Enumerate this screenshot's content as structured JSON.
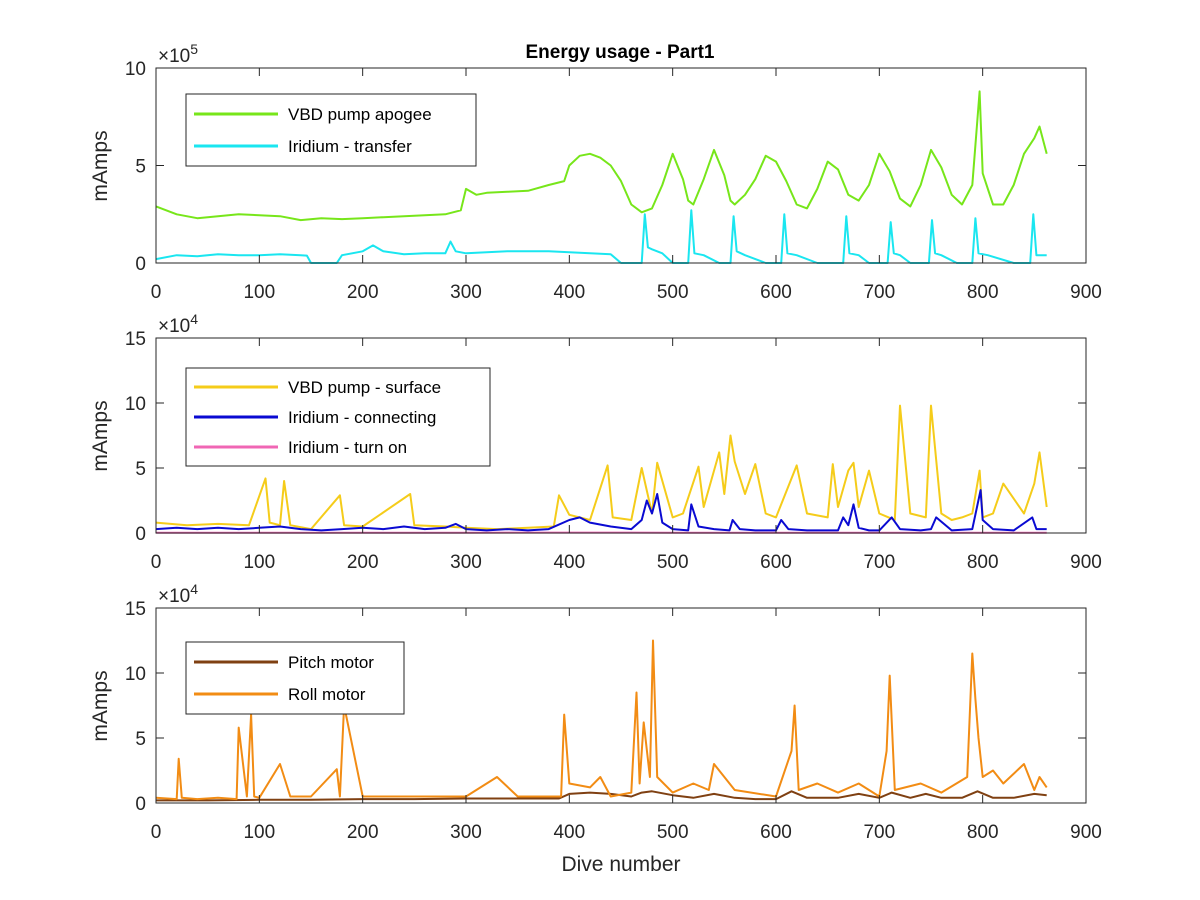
{
  "chart_data": [
    {
      "type": "line",
      "title": "Energy usage - Part1",
      "xlabel": "",
      "ylabel": "mAmps",
      "xlim": [
        0,
        900
      ],
      "ylim": [
        0,
        1000000
      ],
      "xticks": [
        0,
        100,
        200,
        300,
        400,
        500,
        600,
        700,
        800,
        900
      ],
      "yticks": [
        0,
        500000,
        1000000
      ],
      "ytick_labels": [
        "0",
        "5",
        "10"
      ],
      "y_exponent": "10",
      "y_exponent_power": "5",
      "grid": false,
      "legend_position": "top-left",
      "series": [
        {
          "name": "VBD pump apogee",
          "color": "#77e61a",
          "x": [
            0,
            20,
            40,
            60,
            80,
            100,
            120,
            140,
            160,
            180,
            200,
            220,
            240,
            260,
            280,
            295,
            300,
            310,
            320,
            340,
            360,
            380,
            395,
            400,
            410,
            420,
            430,
            440,
            450,
            460,
            470,
            480,
            490,
            500,
            510,
            515,
            520,
            530,
            540,
            550,
            556,
            560,
            570,
            580,
            590,
            600,
            610,
            620,
            630,
            640,
            650,
            660,
            670,
            680,
            690,
            700,
            710,
            720,
            730,
            740,
            750,
            760,
            770,
            780,
            790,
            797,
            800,
            810,
            820,
            830,
            840,
            850,
            855,
            862
          ],
          "values": [
            290000,
            250000,
            230000,
            240000,
            250000,
            245000,
            240000,
            220000,
            230000,
            225000,
            230000,
            235000,
            240000,
            245000,
            250000,
            270000,
            380000,
            350000,
            360000,
            365000,
            370000,
            400000,
            420000,
            500000,
            550000,
            560000,
            540000,
            500000,
            420000,
            300000,
            260000,
            280000,
            400000,
            560000,
            430000,
            320000,
            300000,
            430000,
            580000,
            450000,
            320000,
            300000,
            350000,
            430000,
            550000,
            520000,
            420000,
            300000,
            280000,
            380000,
            520000,
            480000,
            350000,
            320000,
            400000,
            560000,
            470000,
            330000,
            290000,
            400000,
            580000,
            490000,
            350000,
            300000,
            400000,
            880000,
            460000,
            300000,
            300000,
            400000,
            560000,
            640000,
            700000,
            560000
          ]
        },
        {
          "name": "Iridium - transfer",
          "color": "#1ae6f0",
          "x": [
            0,
            20,
            40,
            60,
            80,
            100,
            120,
            140,
            146,
            150,
            175,
            180,
            200,
            210,
            220,
            240,
            260,
            280,
            285,
            290,
            300,
            320,
            340,
            360,
            380,
            400,
            420,
            440,
            450,
            470,
            473,
            476,
            480,
            490,
            500,
            515,
            518,
            521,
            530,
            545,
            556,
            559,
            562,
            570,
            590,
            605,
            608,
            611,
            620,
            640,
            665,
            668,
            671,
            680,
            690,
            708,
            711,
            714,
            720,
            730,
            748,
            751,
            754,
            760,
            775,
            790,
            793,
            796,
            805,
            830,
            846,
            849,
            852,
            862
          ],
          "values": [
            20000,
            40000,
            35000,
            45000,
            40000,
            40000,
            45000,
            40000,
            38000,
            0,
            0,
            40000,
            60000,
            90000,
            60000,
            45000,
            50000,
            50000,
            110000,
            60000,
            50000,
            55000,
            60000,
            60000,
            60000,
            55000,
            50000,
            45000,
            0,
            0,
            250000,
            80000,
            70000,
            50000,
            0,
            0,
            270000,
            50000,
            40000,
            0,
            0,
            240000,
            60000,
            40000,
            0,
            0,
            250000,
            50000,
            40000,
            0,
            0,
            240000,
            50000,
            40000,
            0,
            0,
            210000,
            50000,
            40000,
            0,
            0,
            220000,
            50000,
            40000,
            0,
            0,
            230000,
            50000,
            40000,
            0,
            0,
            250000,
            40000,
            40000
          ]
        }
      ]
    },
    {
      "type": "line",
      "title": "",
      "xlabel": "",
      "ylabel": "mAmps",
      "xlim": [
        0,
        900
      ],
      "ylim": [
        0,
        150000
      ],
      "xticks": [
        0,
        100,
        200,
        300,
        400,
        500,
        600,
        700,
        800,
        900
      ],
      "yticks": [
        0,
        50000,
        100000,
        150000
      ],
      "ytick_labels": [
        "0",
        "5",
        "10",
        "15"
      ],
      "y_exponent": "10",
      "y_exponent_power": "4",
      "grid": false,
      "legend_position": "top-left",
      "series": [
        {
          "name": "VBD pump - surface",
          "color": "#f5cc1a",
          "x": [
            0,
            30,
            60,
            90,
            106,
            110,
            120,
            124,
            130,
            150,
            178,
            182,
            200,
            246,
            250,
            280,
            300,
            330,
            360,
            385,
            390,
            400,
            420,
            437,
            442,
            460,
            470,
            480,
            485,
            500,
            510,
            525,
            530,
            545,
            550,
            556,
            560,
            570,
            580,
            590,
            600,
            620,
            630,
            650,
            655,
            660,
            670,
            675,
            680,
            690,
            700,
            715,
            720,
            730,
            745,
            750,
            760,
            770,
            780,
            790,
            797,
            800,
            810,
            820,
            840,
            850,
            855,
            862
          ],
          "values": [
            8000,
            6000,
            7000,
            6000,
            42000,
            8000,
            6000,
            40000,
            6000,
            3000,
            29000,
            6000,
            5000,
            30000,
            6000,
            5000,
            4000,
            3000,
            4000,
            5000,
            29000,
            14000,
            10000,
            52000,
            12000,
            10000,
            50000,
            15000,
            54000,
            12000,
            15000,
            51000,
            20000,
            62000,
            30000,
            75000,
            55000,
            30000,
            53000,
            15000,
            12000,
            52000,
            15000,
            12000,
            53000,
            20000,
            48000,
            54000,
            20000,
            48000,
            15000,
            10000,
            98000,
            15000,
            12000,
            98000,
            15000,
            10000,
            12000,
            15000,
            48000,
            12000,
            15000,
            38000,
            15000,
            38000,
            62000,
            20000
          ]
        },
        {
          "name": "Iridium - connecting",
          "color": "#0a0ad2",
          "x": [
            0,
            20,
            40,
            60,
            80,
            100,
            120,
            140,
            160,
            180,
            200,
            220,
            240,
            260,
            280,
            290,
            300,
            320,
            340,
            360,
            380,
            400,
            410,
            420,
            440,
            460,
            470,
            475,
            480,
            485,
            490,
            500,
            515,
            518,
            525,
            540,
            555,
            558,
            565,
            580,
            600,
            605,
            612,
            630,
            660,
            665,
            670,
            675,
            680,
            690,
            700,
            712,
            720,
            740,
            750,
            755,
            770,
            790,
            798,
            800,
            810,
            830,
            848,
            852,
            862
          ],
          "values": [
            3000,
            4000,
            3000,
            4000,
            3000,
            4000,
            5000,
            3000,
            2000,
            3000,
            4000,
            3000,
            5000,
            3000,
            4000,
            7000,
            3000,
            2000,
            3000,
            2000,
            3000,
            10000,
            12000,
            8000,
            5000,
            3000,
            10000,
            25000,
            15000,
            30000,
            8000,
            3000,
            2000,
            22000,
            5000,
            3000,
            2000,
            10000,
            3000,
            2000,
            2000,
            10000,
            3000,
            2000,
            2000,
            12000,
            6000,
            22000,
            4000,
            2000,
            2000,
            12000,
            3000,
            2000,
            3000,
            12000,
            2000,
            3000,
            33000,
            10000,
            3000,
            2000,
            12000,
            3000,
            3000
          ]
        },
        {
          "name": "Iridium - turn on",
          "color": "#f066b4",
          "x": [
            0,
            100,
            200,
            300,
            400,
            500,
            600,
            700,
            800,
            862
          ],
          "values": [
            200,
            200,
            200,
            200,
            300,
            200,
            200,
            200,
            200,
            200
          ]
        }
      ]
    },
    {
      "type": "line",
      "title": "",
      "xlabel": "Dive number",
      "ylabel": "mAmps",
      "xlim": [
        0,
        900
      ],
      "ylim": [
        0,
        150000
      ],
      "xticks": [
        0,
        100,
        200,
        300,
        400,
        500,
        600,
        700,
        800,
        900
      ],
      "yticks": [
        0,
        50000,
        100000,
        150000
      ],
      "ytick_labels": [
        "0",
        "5",
        "10",
        "15"
      ],
      "y_exponent": "10",
      "y_exponent_power": "4",
      "grid": false,
      "legend_position": "top-left",
      "series": [
        {
          "name": "Pitch motor",
          "color": "#7f4012",
          "x": [
            0,
            50,
            100,
            150,
            200,
            250,
            300,
            350,
            390,
            400,
            420,
            440,
            460,
            470,
            480,
            500,
            520,
            540,
            560,
            580,
            600,
            615,
            630,
            660,
            680,
            700,
            712,
            730,
            745,
            760,
            780,
            795,
            810,
            830,
            850,
            862
          ],
          "values": [
            2000,
            2000,
            2500,
            2500,
            3000,
            3000,
            3500,
            3500,
            3500,
            7000,
            8000,
            7000,
            5000,
            8000,
            9000,
            6000,
            4000,
            7000,
            4000,
            3000,
            3000,
            9000,
            4000,
            4000,
            7000,
            4000,
            8000,
            4000,
            7000,
            4000,
            4000,
            9000,
            4000,
            4000,
            7000,
            6000
          ]
        },
        {
          "name": "Roll motor",
          "color": "#f28c14",
          "x": [
            0,
            20,
            22,
            25,
            40,
            60,
            78,
            80,
            88,
            92,
            95,
            100,
            120,
            130,
            150,
            175,
            178,
            182,
            200,
            250,
            300,
            330,
            350,
            380,
            392,
            395,
            400,
            420,
            430,
            440,
            460,
            465,
            468,
            472,
            478,
            481,
            485,
            500,
            520,
            535,
            540,
            560,
            600,
            615,
            618,
            622,
            640,
            660,
            680,
            700,
            707,
            710,
            715,
            740,
            760,
            785,
            790,
            793,
            796,
            800,
            810,
            820,
            840,
            850,
            855,
            862
          ],
          "values": [
            4000,
            3000,
            34000,
            4000,
            3000,
            4000,
            3000,
            58000,
            5000,
            68000,
            5000,
            4000,
            30000,
            5000,
            5000,
            26000,
            5000,
            75000,
            5000,
            5000,
            5000,
            20000,
            5000,
            5000,
            5000,
            68000,
            15000,
            12000,
            20000,
            5000,
            8000,
            85000,
            15000,
            62000,
            20000,
            125000,
            20000,
            8000,
            15000,
            10000,
            30000,
            10000,
            5000,
            40000,
            75000,
            10000,
            15000,
            8000,
            15000,
            5000,
            40000,
            98000,
            10000,
            15000,
            8000,
            20000,
            115000,
            80000,
            50000,
            20000,
            25000,
            15000,
            30000,
            10000,
            20000,
            12000
          ]
        }
      ]
    }
  ]
}
